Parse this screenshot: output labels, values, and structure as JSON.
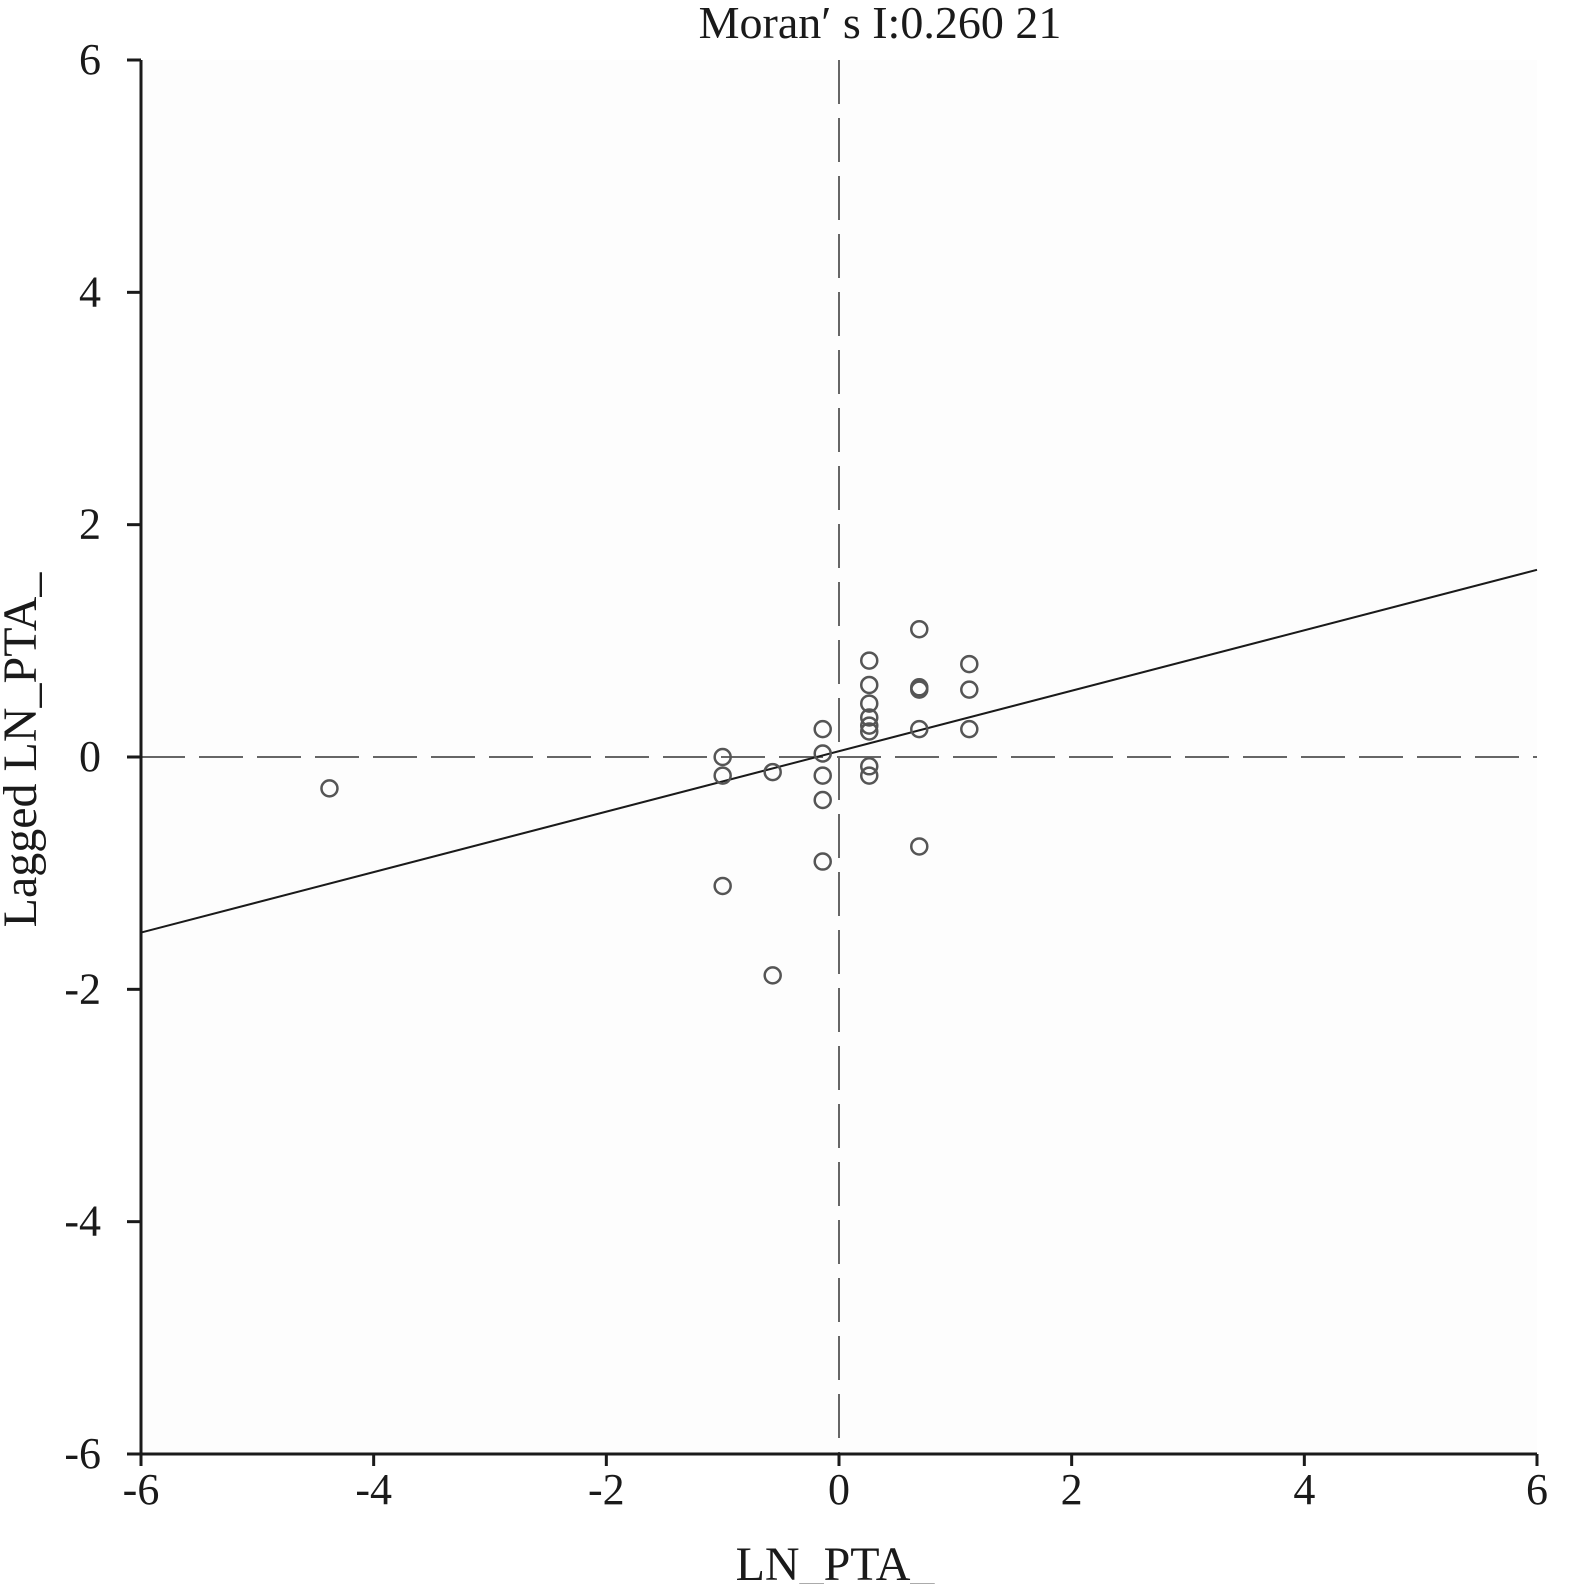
{
  "chart_data": {
    "type": "scatter",
    "title": "Moran′ s  I:0.260 21",
    "xlabel": "LN_PTA_",
    "ylabel": "Lagged LN_PTA_",
    "xlim": [
      -6,
      6
    ],
    "ylim": [
      -6,
      6
    ],
    "xticks": [
      -6,
      -4,
      -2,
      0,
      2,
      4,
      6
    ],
    "yticks": [
      -6,
      -4,
      -2,
      0,
      2,
      4,
      6
    ],
    "xtick_labels": [
      "-6",
      "-4",
      "-2",
      "0",
      "2",
      "4",
      "6"
    ],
    "ytick_labels": [
      "-6",
      "-4",
      "-2",
      "0",
      "2",
      "4",
      "6"
    ],
    "reference_lines": {
      "x": 0,
      "y": 0,
      "style": "dashed"
    },
    "regression_line": {
      "slope": 0.26021,
      "intercept": 0.05
    },
    "grid": false,
    "colors": {
      "marker": "#555555",
      "axis": "#1a1a1a",
      "dashed": "#666666",
      "background": "#fdfdfd"
    },
    "points": [
      [
        -4.38,
        -0.27
      ],
      [
        -1.0,
        0.0
      ],
      [
        -1.0,
        -0.16
      ],
      [
        -1.0,
        -1.11
      ],
      [
        -0.57,
        -0.13
      ],
      [
        -0.57,
        -1.88
      ],
      [
        -0.14,
        0.24
      ],
      [
        -0.14,
        0.03
      ],
      [
        -0.14,
        -0.16
      ],
      [
        -0.14,
        -0.37
      ],
      [
        -0.14,
        -0.9
      ],
      [
        0.26,
        0.83
      ],
      [
        0.26,
        0.62
      ],
      [
        0.26,
        0.46
      ],
      [
        0.26,
        0.34
      ],
      [
        0.26,
        0.27
      ],
      [
        0.26,
        0.22
      ],
      [
        0.26,
        -0.08
      ],
      [
        0.26,
        -0.16
      ],
      [
        0.69,
        1.1
      ],
      [
        0.69,
        0.6
      ],
      [
        0.69,
        0.58
      ],
      [
        0.69,
        0.24
      ],
      [
        0.69,
        -0.77
      ],
      [
        1.12,
        0.8
      ],
      [
        1.12,
        0.58
      ],
      [
        1.12,
        0.24
      ]
    ]
  }
}
